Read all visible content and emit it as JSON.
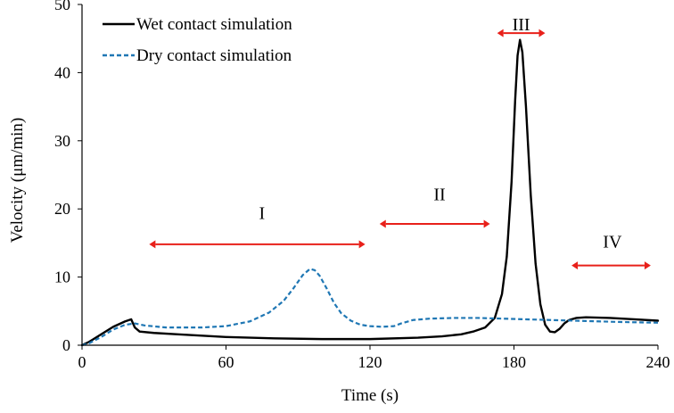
{
  "chart_data": {
    "type": "line",
    "title": "",
    "xlabel": "Time (s)",
    "ylabel": "Velocity (μm/min)",
    "xlim": [
      0,
      240
    ],
    "ylim": [
      0,
      50
    ],
    "xticks": [
      0,
      60,
      120,
      180,
      240
    ],
    "yticks": [
      0,
      10,
      20,
      30,
      40,
      50
    ],
    "grid": false,
    "legend": "top-left",
    "series": [
      {
        "name": "Wet contact simulation",
        "color": "#000000",
        "style": "solid",
        "x": [
          0,
          3,
          8,
          13,
          18,
          20.5,
          22,
          24,
          30,
          40,
          60,
          80,
          100,
          120,
          140,
          150,
          158,
          163,
          168,
          172,
          175,
          177,
          179,
          180.5,
          181.5,
          182.5,
          183.5,
          185,
          187,
          189,
          191,
          193,
          195,
          197,
          199,
          201,
          203,
          206,
          210,
          220,
          230,
          240
        ],
        "y": [
          0,
          0.5,
          1.6,
          2.7,
          3.5,
          3.8,
          2.6,
          2.0,
          1.8,
          1.6,
          1.2,
          1.0,
          0.9,
          0.9,
          1.1,
          1.3,
          1.6,
          2.0,
          2.6,
          4.0,
          7.5,
          13.0,
          24.0,
          36.0,
          42.5,
          44.8,
          43.0,
          35.0,
          22.0,
          12.0,
          6.0,
          3.0,
          2.0,
          1.9,
          2.4,
          3.2,
          3.7,
          4.0,
          4.1,
          4.0,
          3.8,
          3.6
        ]
      },
      {
        "name": "Dry contact simulation",
        "color": "#1f77b4",
        "style": "dashed",
        "x": [
          0,
          3,
          8,
          13,
          18,
          22,
          26,
          35,
          50,
          60,
          70,
          78,
          84,
          88,
          92,
          95,
          97,
          99,
          102,
          105,
          108,
          112,
          116,
          120,
          125,
          130,
          133,
          138,
          145,
          155,
          165,
          175,
          185,
          195,
          205,
          215,
          225,
          240
        ],
        "y": [
          0,
          0.3,
          1.2,
          2.3,
          3.0,
          3.2,
          2.9,
          2.6,
          2.6,
          2.8,
          3.5,
          4.8,
          6.5,
          8.3,
          10.3,
          11.2,
          11.0,
          10.2,
          8.3,
          6.2,
          4.7,
          3.6,
          3.0,
          2.8,
          2.7,
          2.8,
          3.2,
          3.7,
          3.9,
          4.0,
          4.0,
          3.9,
          3.8,
          3.7,
          3.6,
          3.5,
          3.4,
          3.3
        ]
      }
    ],
    "annotations": [
      {
        "label": "I",
        "x_start": 28,
        "x_end": 118,
        "y": 14.8,
        "label_x": 75,
        "label_y": 18.5
      },
      {
        "label": "II",
        "x_start": 124,
        "x_end": 170,
        "y": 17.8,
        "label_x": 149,
        "label_y": 21.3
      },
      {
        "label": "III",
        "x_start": 173,
        "x_end": 193,
        "y": 45.8,
        "label_x": 183,
        "label_y": 46.2
      },
      {
        "label": "IV",
        "x_start": 204,
        "x_end": 237,
        "y": 11.7,
        "label_x": 221,
        "label_y": 14.3
      }
    ],
    "annotation_color": "#e8201a"
  }
}
